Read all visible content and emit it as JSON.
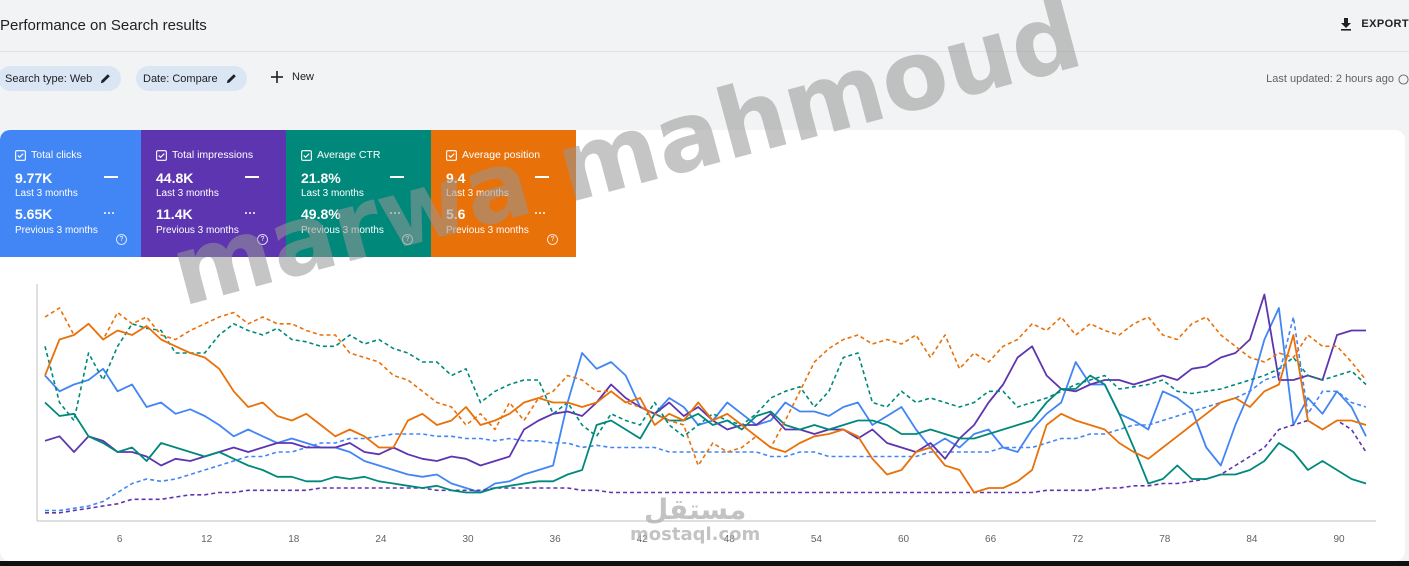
{
  "header": {
    "title": "Performance on Search results",
    "export_label": "EXPORT",
    "export_icon": "download-icon"
  },
  "filters": {
    "search_type_label": "Search type: Web",
    "date_label": "Date: Compare",
    "edit_icon": "pencil-icon",
    "new_label": "New",
    "new_icon": "plus-icon",
    "last_updated": "Last updated: 2 hours ago",
    "last_updated_icon": "help-icon"
  },
  "metrics": [
    {
      "label": "Total clicks",
      "value": "9.77K",
      "period": "Last 3 months",
      "compare_value": "5.65K",
      "compare_period": "Previous 3 months",
      "color": "#4285f4"
    },
    {
      "label": "Total impressions",
      "value": "44.8K",
      "period": "Last 3 months",
      "compare_value": "11.4K",
      "compare_period": "Previous 3 months",
      "color": "#5e35b1"
    },
    {
      "label": "Average CTR",
      "value": "21.8%",
      "period": "Last 3 months",
      "compare_value": "49.8%",
      "compare_period": "Previous 3 months",
      "color": "#00897b"
    },
    {
      "label": "Average position",
      "value": "9.4",
      "period": "Last 3 months",
      "compare_value": "5.6",
      "compare_period": "Previous 3 months",
      "color": "#e8710a"
    }
  ],
  "chart_data": {
    "type": "line",
    "xlabel": "",
    "ylabel": "",
    "xlim": [
      1,
      92
    ],
    "ylim": [
      0,
      100
    ],
    "x_ticks": [
      6,
      12,
      18,
      24,
      30,
      36,
      42,
      48,
      54,
      60,
      66,
      72,
      78,
      84,
      90
    ],
    "grid": false,
    "series": [
      {
        "color": "#4285f4",
        "dashed": false,
        "values": [
          62,
          55,
          58,
          60,
          65,
          55,
          58,
          48,
          50,
          45,
          47,
          44,
          40,
          35,
          38,
          35,
          32,
          34,
          32,
          30,
          30,
          28,
          24,
          22,
          20,
          18,
          17,
          18,
          14,
          12,
          10,
          14,
          15,
          18,
          20,
          22,
          50,
          72,
          65,
          68,
          62,
          48,
          45,
          52,
          48,
          40,
          42,
          50,
          45,
          40,
          42,
          50,
          46,
          46,
          44,
          48,
          50,
          40,
          44,
          48,
          38,
          30,
          34,
          30,
          36,
          38,
          30,
          28,
          38,
          45,
          50,
          68,
          58,
          58,
          45,
          42,
          38,
          55,
          52,
          47,
          30,
          22,
          40,
          55,
          78,
          92,
          40,
          52,
          45,
          55,
          48,
          35
        ]
      },
      {
        "color": "#4285f4",
        "dashed": true,
        "values": [
          2,
          2,
          3,
          4,
          6,
          10,
          14,
          16,
          15,
          16,
          18,
          20,
          22,
          24,
          26,
          26,
          28,
          28,
          30,
          32,
          32,
          34,
          34,
          35,
          36,
          36,
          36,
          35,
          35,
          34,
          34,
          33,
          34,
          33,
          33,
          32,
          32,
          30,
          31,
          30,
          30,
          30,
          30,
          28,
          28,
          28,
          28,
          28,
          28,
          28,
          26,
          26,
          28,
          28,
          26,
          26,
          26,
          26,
          26,
          26,
          26,
          28,
          28,
          28,
          28,
          28,
          30,
          30,
          30,
          32,
          34,
          34,
          36,
          36,
          38,
          40,
          40,
          42,
          44,
          46,
          48,
          50,
          52,
          55,
          60,
          62,
          88,
          45,
          55,
          55,
          50,
          48
        ]
      },
      {
        "color": "#5e35b1",
        "dashed": false,
        "values": [
          33,
          35,
          28,
          35,
          33,
          28,
          28,
          26,
          22,
          25,
          24,
          26,
          28,
          30,
          28,
          30,
          32,
          32,
          30,
          30,
          30,
          32,
          28,
          27,
          30,
          27,
          25,
          24,
          26,
          25,
          22,
          24,
          26,
          38,
          42,
          45,
          46,
          44,
          50,
          58,
          52,
          48,
          45,
          50,
          44,
          48,
          42,
          38,
          40,
          40,
          45,
          38,
          38,
          36,
          38,
          38,
          34,
          38,
          32,
          30,
          28,
          32,
          25,
          34,
          40,
          50,
          58,
          70,
          75,
          62,
          56,
          55,
          58,
          60,
          60,
          58,
          60,
          62,
          60,
          65,
          66,
          70,
          72,
          78,
          98,
          60,
          60,
          62,
          60,
          80,
          82,
          82
        ]
      },
      {
        "color": "#5e35b1",
        "dashed": true,
        "values": [
          1,
          1,
          2,
          3,
          4,
          5,
          7,
          7,
          7,
          8,
          9,
          9,
          10,
          10,
          11,
          11,
          11,
          11,
          11,
          12,
          12,
          12,
          12,
          12,
          12,
          12,
          12,
          11,
          11,
          11,
          11,
          12,
          12,
          12,
          12,
          12,
          12,
          11,
          11,
          10,
          10,
          10,
          10,
          10,
          10,
          10,
          10,
          10,
          10,
          10,
          10,
          10,
          10,
          10,
          10,
          10,
          10,
          10,
          10,
          10,
          10,
          10,
          10,
          10,
          10,
          10,
          10,
          10,
          10,
          11,
          11,
          11,
          11,
          12,
          12,
          13,
          13,
          14,
          14,
          15,
          16,
          18,
          22,
          26,
          30,
          38,
          40,
          42,
          38,
          42,
          38,
          28
        ]
      },
      {
        "color": "#00897b",
        "dashed": false,
        "values": [
          50,
          44,
          45,
          35,
          32,
          28,
          30,
          24,
          32,
          30,
          28,
          26,
          28,
          25,
          22,
          20,
          17,
          17,
          15,
          15,
          17,
          16,
          17,
          15,
          14,
          13,
          12,
          13,
          11,
          10,
          10,
          12,
          13,
          14,
          15,
          15,
          18,
          20,
          40,
          42,
          38,
          34,
          45,
          42,
          42,
          45,
          40,
          42,
          38,
          44,
          46,
          40,
          38,
          40,
          38,
          40,
          42,
          42,
          40,
          36,
          36,
          38,
          36,
          34,
          34,
          36,
          38,
          40,
          42,
          50,
          56,
          56,
          62,
          58,
          45,
          30,
          14,
          16,
          22,
          16,
          16,
          18,
          18,
          20,
          24,
          32,
          28,
          20,
          24,
          20,
          16,
          14
        ]
      },
      {
        "color": "#00897b",
        "dashed": true,
        "values": [
          75,
          50,
          42,
          72,
          60,
          75,
          85,
          83,
          82,
          72,
          72,
          72,
          80,
          85,
          82,
          80,
          83,
          78,
          77,
          75,
          75,
          80,
          76,
          78,
          74,
          72,
          68,
          68,
          62,
          65,
          50,
          55,
          58,
          60,
          60,
          45,
          50,
          40,
          35,
          45,
          42,
          40,
          50,
          40,
          35,
          40,
          45,
          42,
          40,
          45,
          52,
          55,
          57,
          48,
          55,
          70,
          72,
          50,
          48,
          55,
          50,
          52,
          50,
          48,
          50,
          55,
          55,
          48,
          50,
          52,
          55,
          58,
          60,
          62,
          56,
          57,
          58,
          60,
          55,
          54,
          55,
          56,
          58,
          60,
          62,
          65,
          70,
          62,
          60,
          62,
          64,
          58
        ]
      },
      {
        "color": "#e8710a",
        "dashed": false,
        "values": [
          62,
          78,
          80,
          85,
          78,
          82,
          80,
          84,
          78,
          75,
          72,
          70,
          65,
          55,
          48,
          50,
          44,
          42,
          45,
          40,
          35,
          38,
          35,
          30,
          30,
          42,
          45,
          40,
          42,
          48,
          40,
          42,
          45,
          50,
          52,
          50,
          50,
          48,
          50,
          55,
          50,
          52,
          40,
          45,
          42,
          50,
          42,
          45,
          40,
          35,
          30,
          28,
          32,
          35,
          36,
          38,
          35,
          25,
          18,
          20,
          28,
          30,
          22,
          20,
          10,
          12,
          12,
          15,
          20,
          40,
          45,
          42,
          40,
          38,
          32,
          28,
          25,
          30,
          35,
          40,
          45,
          50,
          52,
          48,
          55,
          58,
          80,
          42,
          38,
          42,
          42,
          40
        ]
      },
      {
        "color": "#e8710a",
        "dashed": true,
        "values": [
          88,
          92,
          80,
          85,
          78,
          90,
          85,
          88,
          80,
          78,
          82,
          85,
          88,
          90,
          85,
          88,
          85,
          85,
          82,
          80,
          80,
          72,
          70,
          68,
          62,
          60,
          55,
          50,
          48,
          40,
          45,
          38,
          50,
          42,
          52,
          55,
          62,
          60,
          55,
          55,
          50,
          48,
          45,
          42,
          40,
          22,
          32,
          28,
          30,
          35,
          30,
          42,
          55,
          68,
          74,
          78,
          80,
          76,
          78,
          76,
          80,
          70,
          80,
          65,
          72,
          68,
          75,
          78,
          85,
          82,
          88,
          80,
          85,
          82,
          80,
          85,
          88,
          80,
          78,
          85,
          88,
          80,
          75,
          70,
          68,
          72,
          70,
          80,
          75,
          75,
          68,
          60
        ]
      }
    ]
  },
  "watermark": {
    "text": "marwa mahmoud",
    "logo_ar": "مستقل",
    "logo_en": "mostaql.com"
  }
}
